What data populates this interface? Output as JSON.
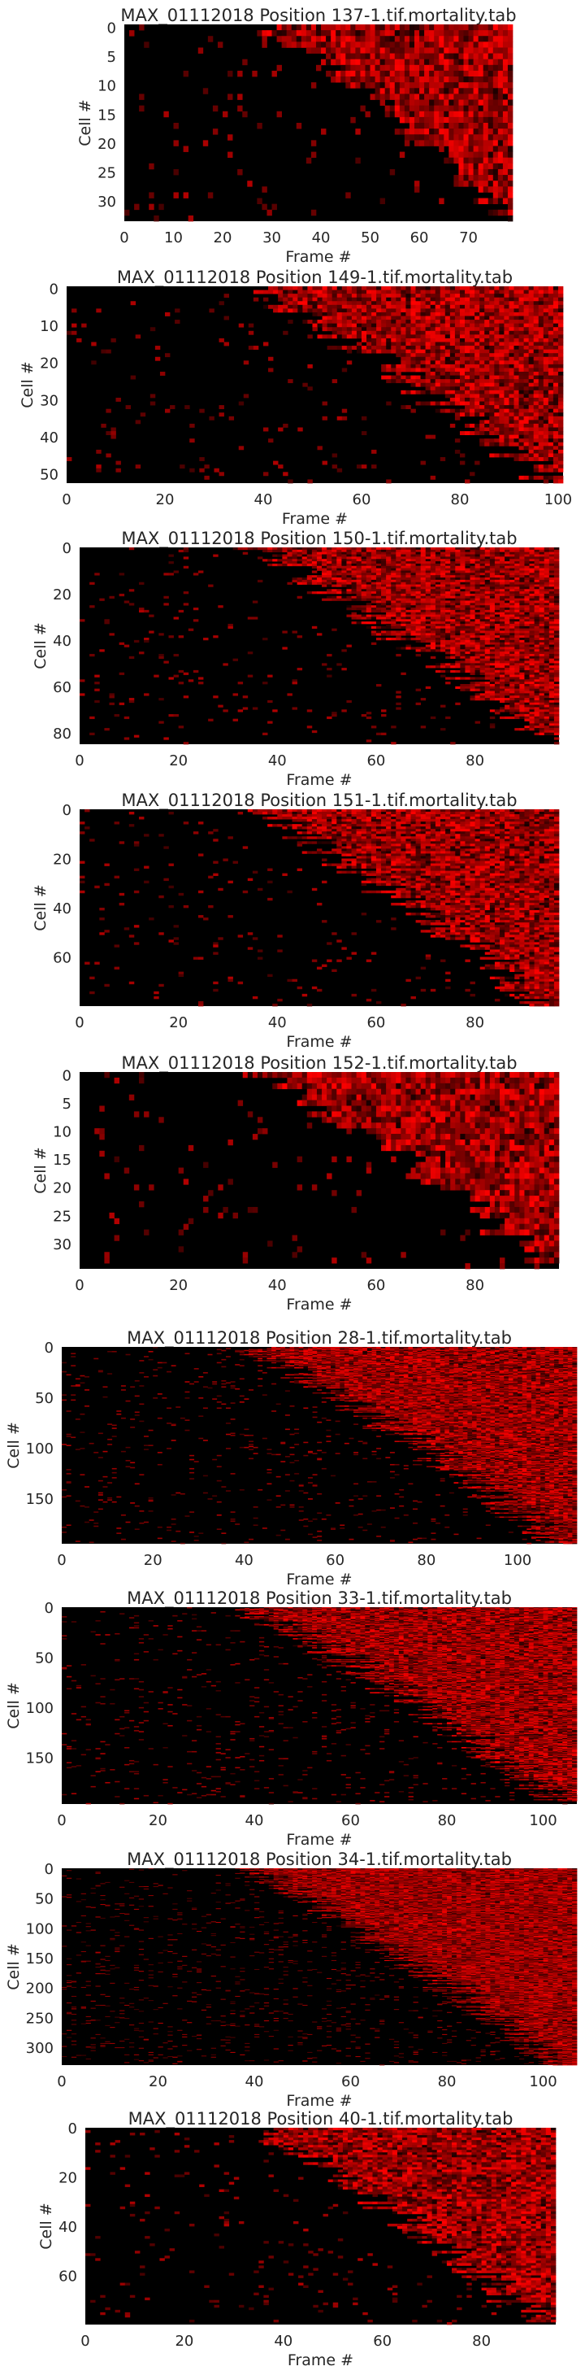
{
  "chart_data": [
    {
      "type": "heatmap",
      "title": "MAX_01112018 Position 137-1.tif.mortality.tab",
      "xlabel": "Frame #",
      "ylabel": "Cell #",
      "xlim": [
        0,
        79
      ],
      "ylim": [
        0,
        34
      ],
      "xticks": [
        0,
        10,
        20,
        30,
        40,
        50,
        60,
        70
      ],
      "yticks": [
        0,
        5,
        10,
        15,
        20,
        25,
        30
      ],
      "ytick_position": "center",
      "grid": false,
      "colormap": [
        "#000000",
        "#ff0000"
      ]
    },
    {
      "type": "heatmap",
      "title": "MAX_01112018 Position 149-1.tif.mortality.tab",
      "xlabel": "Frame #",
      "ylabel": "Cell #",
      "xlim": [
        0,
        101
      ],
      "ylim": [
        0,
        53
      ],
      "xticks": [
        0,
        20,
        40,
        60,
        80,
        100
      ],
      "yticks": [
        0,
        10,
        20,
        30,
        40,
        50
      ],
      "ytick_position": "center",
      "grid": false,
      "colormap": [
        "#000000",
        "#ff0000"
      ]
    },
    {
      "type": "heatmap",
      "title": "MAX_01112018 Position 150-1.tif.mortality.tab",
      "xlabel": "Frame #",
      "ylabel": "Cell #",
      "xlim": [
        0,
        97
      ],
      "ylim": [
        0,
        85
      ],
      "xticks": [
        0,
        20,
        40,
        60,
        80
      ],
      "yticks": [
        0,
        20,
        40,
        60,
        80
      ],
      "ytick_position": "edge",
      "grid": false,
      "colormap": [
        "#000000",
        "#ff0000"
      ]
    },
    {
      "type": "heatmap",
      "title": "MAX_01112018 Position 151-1.tif.mortality.tab",
      "xlabel": "Frame #",
      "ylabel": "Cell #",
      "xlim": [
        0,
        97
      ],
      "ylim": [
        0,
        80
      ],
      "xticks": [
        0,
        20,
        40,
        60,
        80
      ],
      "yticks": [
        0,
        20,
        40,
        60
      ],
      "ytick_position": "edge",
      "grid": false,
      "colormap": [
        "#000000",
        "#ff0000"
      ]
    },
    {
      "type": "heatmap",
      "title": "MAX_01112018 Position 152-1.tif.mortality.tab",
      "xlabel": "Frame #",
      "ylabel": "Cell #",
      "xlim": [
        0,
        97
      ],
      "ylim": [
        0,
        35
      ],
      "xticks": [
        0,
        20,
        40,
        60,
        80
      ],
      "yticks": [
        0,
        5,
        10,
        15,
        20,
        25,
        30
      ],
      "ytick_position": "center",
      "grid": false,
      "colormap": [
        "#000000",
        "#ff0000"
      ]
    },
    {
      "type": "heatmap",
      "title": "MAX_01112018 Position 28-1.tif.mortality.tab",
      "xlabel": "Frame #",
      "ylabel": "Cell #",
      "xlim": [
        0,
        113
      ],
      "ylim": [
        0,
        195
      ],
      "xticks": [
        0,
        20,
        40,
        60,
        80,
        100
      ],
      "yticks": [
        0,
        50,
        100,
        150
      ],
      "ytick_position": "edge",
      "grid": false,
      "colormap": [
        "#000000",
        "#ff0000"
      ]
    },
    {
      "type": "heatmap",
      "title": "MAX_01112018 Position 33-1.tif.mortality.tab",
      "xlabel": "Frame #",
      "ylabel": "Cell #",
      "xlim": [
        0,
        107
      ],
      "ylim": [
        0,
        197
      ],
      "xticks": [
        0,
        20,
        40,
        60,
        80,
        100
      ],
      "yticks": [
        0,
        50,
        100,
        150
      ],
      "ytick_position": "edge",
      "grid": false,
      "colormap": [
        "#000000",
        "#ff0000"
      ]
    },
    {
      "type": "heatmap",
      "title": "MAX_01112018 Position 34-1.tif.mortality.tab",
      "xlabel": "Frame #",
      "ylabel": "Cell #",
      "xlim": [
        0,
        107
      ],
      "ylim": [
        0,
        330
      ],
      "xticks": [
        0,
        20,
        40,
        60,
        80,
        100
      ],
      "yticks": [
        0,
        50,
        100,
        150,
        200,
        250,
        300
      ],
      "ytick_position": "edge",
      "grid": false,
      "colormap": [
        "#000000",
        "#ff0000"
      ]
    },
    {
      "type": "heatmap",
      "title": "MAX_01112018 Position 40-1.tif.mortality.tab",
      "xlabel": "Frame #",
      "ylabel": "Cell #",
      "xlim": [
        0,
        95
      ],
      "ylim": [
        0,
        80
      ],
      "xticks": [
        0,
        20,
        40,
        60,
        80
      ],
      "yticks": [
        0,
        20,
        40,
        60
      ],
      "ytick_position": "edge",
      "grid": false,
      "colormap": [
        "#000000",
        "#ff0000"
      ]
    }
  ]
}
